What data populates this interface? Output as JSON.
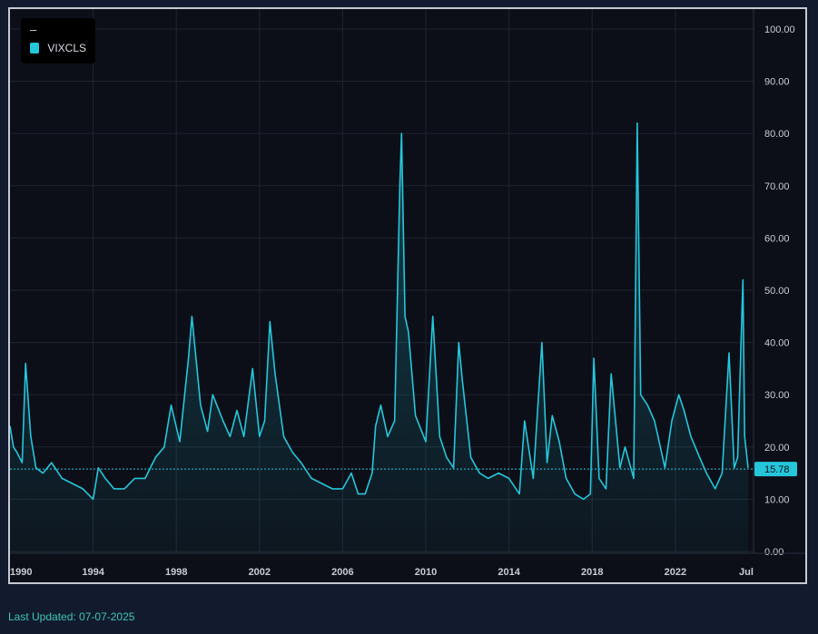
{
  "chart_data": {
    "type": "line",
    "title": "",
    "xlabel": "",
    "ylabel": "",
    "legend": {
      "title": "–",
      "placement": "top-left"
    },
    "series": [
      {
        "name": "VIXCLS",
        "color": "#26c6da",
        "x": [
          "1990-01",
          "1990-03",
          "1990-05",
          "1990-08",
          "1990-10",
          "1991-01",
          "1991-04",
          "1991-08",
          "1992-01",
          "1992-07",
          "1993-01",
          "1993-07",
          "1994-01",
          "1994-04",
          "1994-08",
          "1995-01",
          "1995-07",
          "1996-01",
          "1996-07",
          "1997-01",
          "1997-06",
          "1997-10",
          "1998-03",
          "1998-08",
          "1998-10",
          "1999-03",
          "1999-07",
          "1999-10",
          "2000-04",
          "2000-08",
          "2000-12",
          "2001-04",
          "2001-09",
          "2002-01",
          "2002-04",
          "2002-07",
          "2002-10",
          "2003-03",
          "2003-08",
          "2004-01",
          "2004-07",
          "2005-01",
          "2005-07",
          "2006-01",
          "2006-06",
          "2006-10",
          "2007-02",
          "2007-06",
          "2007-08",
          "2007-11",
          "2008-03",
          "2008-07",
          "2008-10",
          "2008-11",
          "2009-01",
          "2009-03",
          "2009-07",
          "2010-01",
          "2010-05",
          "2010-09",
          "2011-01",
          "2011-05",
          "2011-08",
          "2011-10",
          "2012-03",
          "2012-08",
          "2013-01",
          "2013-07",
          "2014-01",
          "2014-07",
          "2014-10",
          "2015-03",
          "2015-08",
          "2015-11",
          "2016-02",
          "2016-06",
          "2016-10",
          "2017-03",
          "2017-08",
          "2017-12",
          "2018-02",
          "2018-05",
          "2018-09",
          "2018-12",
          "2019-05",
          "2019-08",
          "2020-01",
          "2020-03",
          "2020-05",
          "2020-09",
          "2021-01",
          "2021-03",
          "2021-07",
          "2021-11",
          "2022-03",
          "2022-06",
          "2022-10",
          "2023-03",
          "2023-07",
          "2023-12",
          "2024-04",
          "2024-08",
          "2024-11",
          "2025-01",
          "2025-04",
          "2025-05",
          "2025-07"
        ],
        "values": [
          24,
          20,
          19,
          17,
          36,
          22,
          16,
          15,
          17,
          14,
          13,
          12,
          10,
          16,
          14,
          12,
          12,
          14,
          14,
          18,
          20,
          28,
          21,
          37,
          45,
          28,
          23,
          30,
          25,
          22,
          27,
          22,
          35,
          22,
          25,
          44,
          34,
          22,
          19,
          17,
          14,
          13,
          12,
          12,
          15,
          11,
          11,
          15,
          24,
          28,
          22,
          25,
          70,
          80,
          45,
          42,
          26,
          21,
          45,
          22,
          18,
          16,
          40,
          33,
          18,
          15,
          14,
          15,
          14,
          11,
          25,
          14,
          40,
          17,
          26,
          21,
          14,
          11,
          10,
          11,
          37,
          14,
          12,
          34,
          16,
          20,
          14,
          82,
          30,
          28,
          25,
          22,
          16,
          25,
          30,
          27,
          22,
          18,
          15,
          12,
          15,
          38,
          16,
          18,
          52,
          22,
          16
        ]
      }
    ],
    "x_ticks": [
      "1990",
      "1994",
      "1998",
      "2002",
      "2006",
      "2010",
      "2014",
      "2018",
      "2022",
      "Jul"
    ],
    "y_ticks": [
      "0.00",
      "10.00",
      "20.00",
      "30.00",
      "40.00",
      "50.00",
      "60.00",
      "70.00",
      "80.00",
      "90.00",
      "100.00"
    ],
    "ylim": [
      0,
      100
    ],
    "xlim": [
      "1990-01",
      "2025-07"
    ],
    "grid": true,
    "last_value": {
      "label": "15.78",
      "value": 15.78
    }
  },
  "footer": {
    "last_updated": "Last Updated: 07-07-2025"
  }
}
